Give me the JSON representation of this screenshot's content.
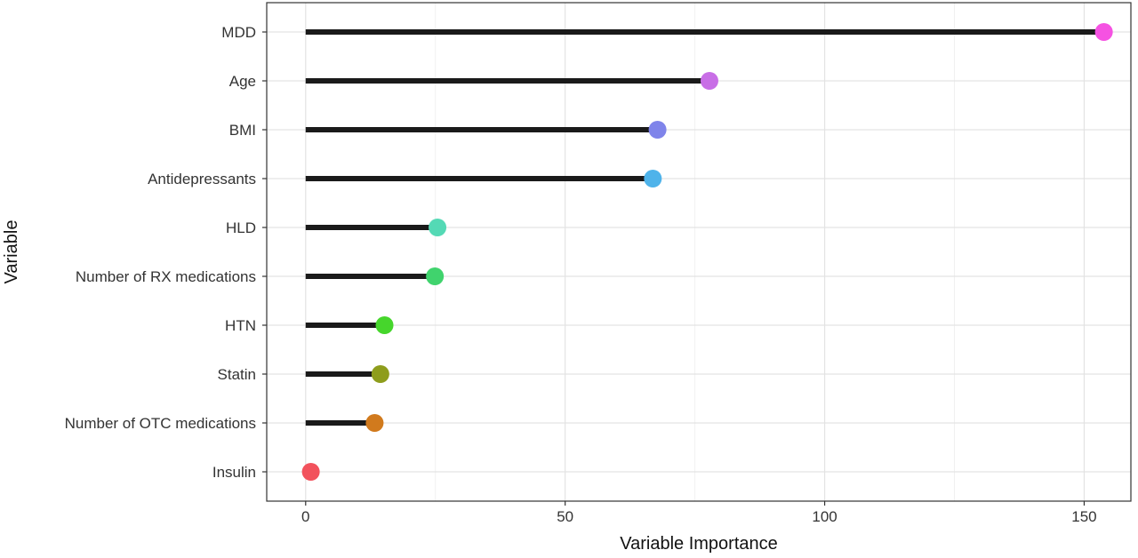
{
  "chart_data": {
    "type": "lollipop",
    "xlabel": "Variable Importance",
    "ylabel": "Variable",
    "xlim": [
      -7.5,
      159
    ],
    "x_ticks": [
      0,
      50,
      100,
      150
    ],
    "grid": true,
    "legend": "none",
    "categories": [
      "MDD",
      "Age",
      "BMI",
      "Antidepressants",
      "HLD",
      "Number of RX medications",
      "HTN",
      "Statin",
      "Number of OTC medications",
      "Insulin"
    ],
    "values": [
      153.8,
      77.8,
      67.8,
      66.9,
      25.4,
      24.9,
      15.2,
      14.4,
      13.3,
      1.0
    ],
    "colors": [
      "#f552e2",
      "#c86ee6",
      "#7f84ea",
      "#4fb3ea",
      "#54d9b5",
      "#40d36d",
      "#46d62c",
      "#8e9d1c",
      "#d17a1d",
      "#f2525c"
    ]
  }
}
